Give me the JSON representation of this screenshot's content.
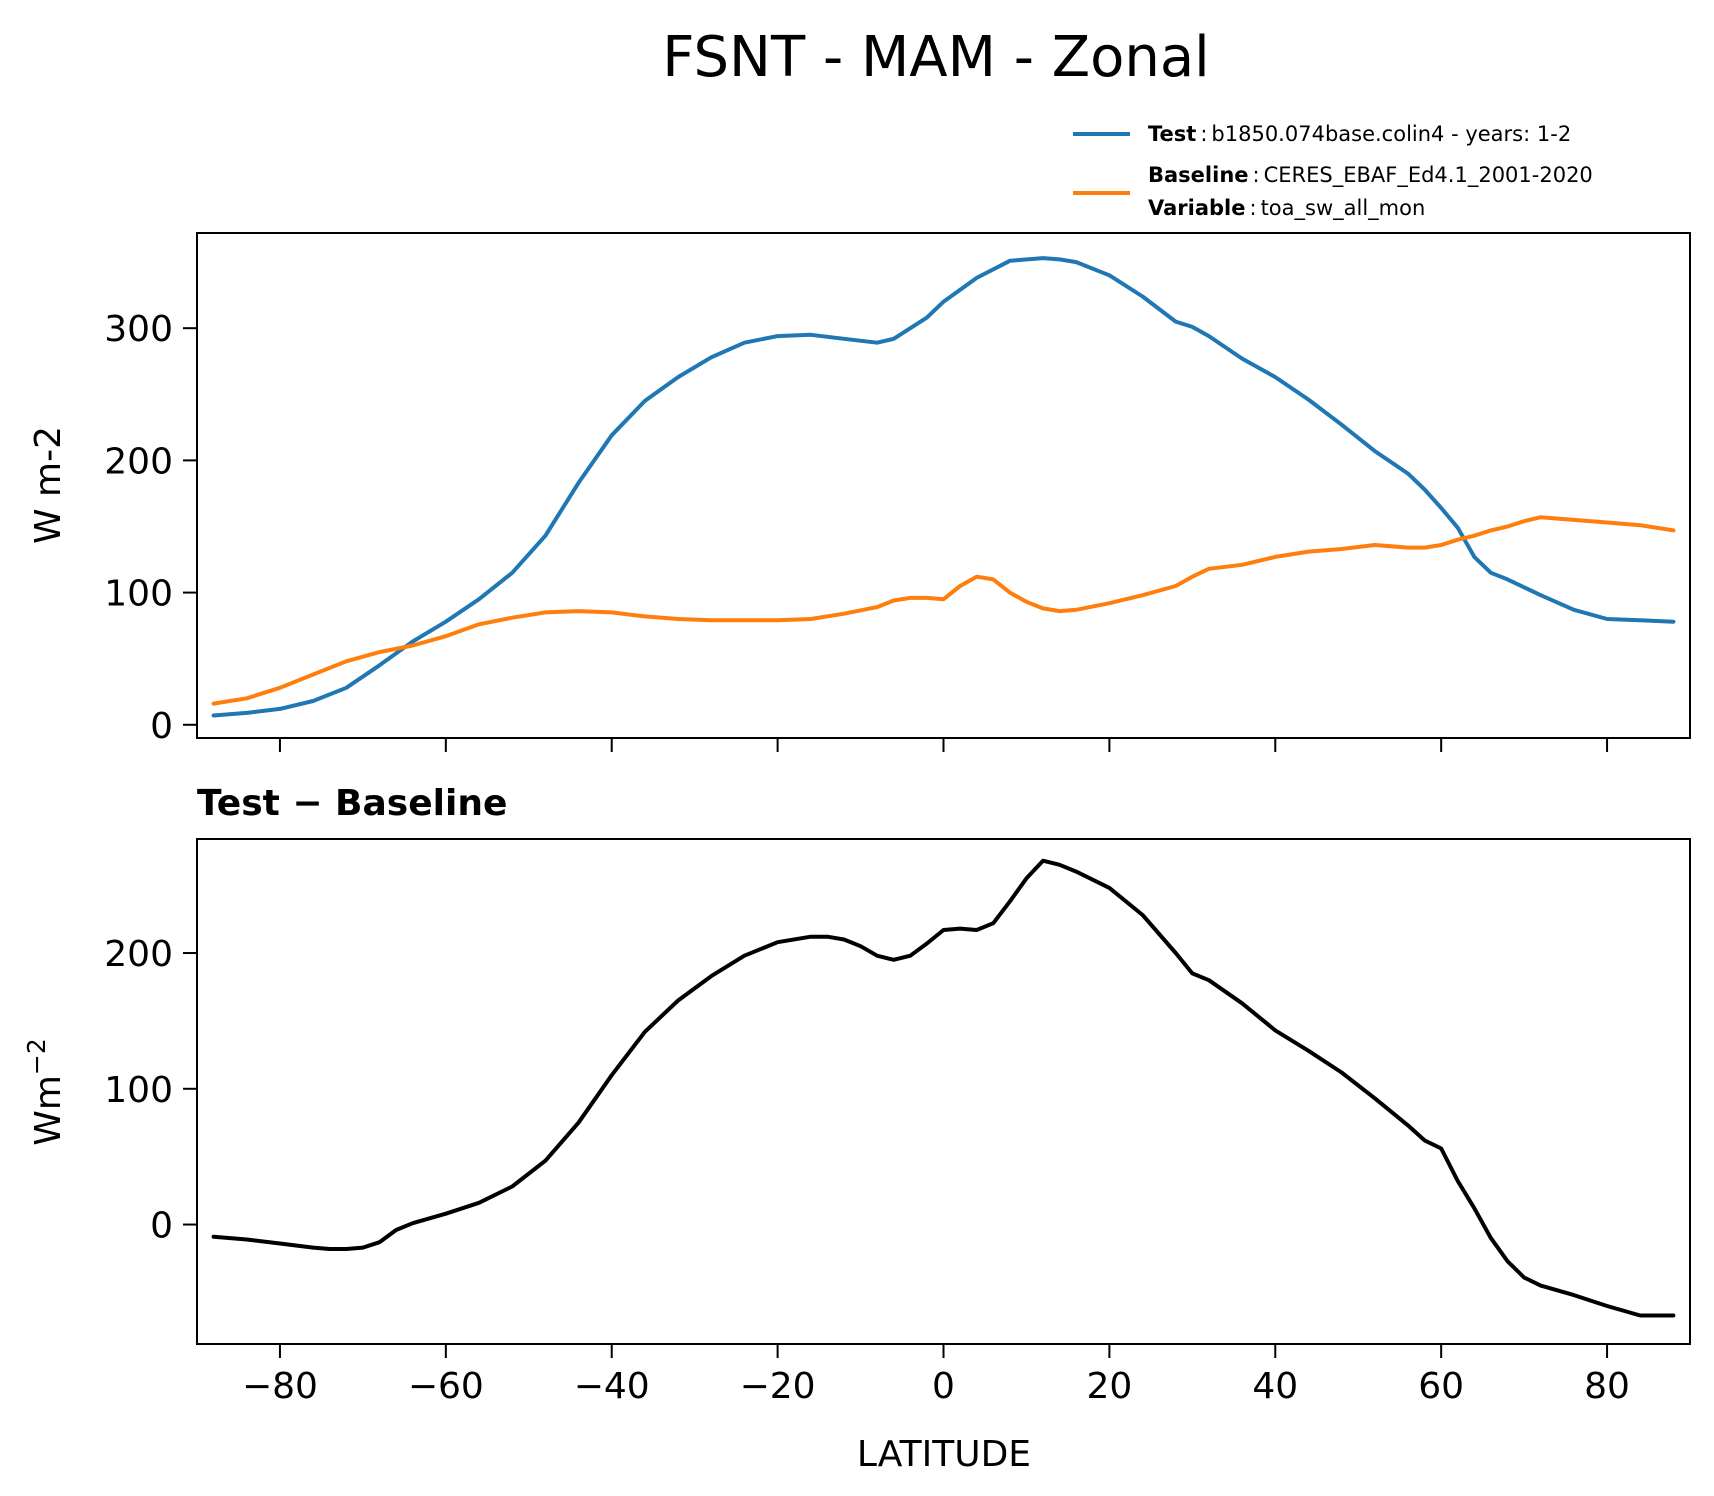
{
  "figure": {
    "title": "FSNT - MAM - Zonal",
    "colors": {
      "test": "#1f77b4",
      "baseline": "#ff7f0e",
      "diff": "#000000"
    }
  },
  "legend": {
    "test_key": "Test",
    "test_value": "b1850.074base.colin4 - years: 1-2",
    "baseline_key": "Baseline",
    "baseline_value": "CERES_EBAF_Ed4.1_2001-2020",
    "variable_key": "Variable",
    "variable_value": "toa_sw_all_mon",
    "separator": ":"
  },
  "chart_data": [
    {
      "type": "line",
      "ylabel": "W m-2",
      "xlim": [
        -90,
        90
      ],
      "ylim": [
        -10,
        372
      ],
      "xticks": [
        -80,
        -60,
        -40,
        -20,
        0,
        20,
        40,
        60,
        80
      ],
      "yticks": [
        0,
        100,
        200,
        300
      ],
      "ytick_labels": [
        "0",
        "100",
        "200",
        "300"
      ],
      "show_xtick_labels": false,
      "grid": false,
      "legend_location": "above right",
      "series": [
        {
          "name": "Test",
          "color": "#1f77b4",
          "x": [
            -88,
            -84,
            -80,
            -76,
            -72,
            -68,
            -64,
            -60,
            -56,
            -52,
            -48,
            -44,
            -40,
            -36,
            -32,
            -28,
            -24,
            -20,
            -16,
            -12,
            -8,
            -6,
            -4,
            -2,
            0,
            4,
            8,
            12,
            14,
            16,
            20,
            24,
            28,
            30,
            32,
            36,
            40,
            44,
            48,
            52,
            56,
            58,
            60,
            62,
            64,
            66,
            68,
            70,
            72,
            76,
            80,
            84,
            88
          ],
          "y": [
            7,
            9,
            12,
            18,
            28,
            45,
            63,
            78,
            95,
            115,
            143,
            183,
            219,
            245,
            263,
            278,
            289,
            294,
            295,
            292,
            289,
            292,
            300,
            308,
            320,
            338,
            351,
            353,
            352,
            350,
            340,
            324,
            305,
            301,
            294,
            277,
            263,
            246,
            227,
            207,
            190,
            178,
            164,
            149,
            127,
            115,
            110,
            104,
            98,
            87,
            80,
            79,
            78
          ]
        },
        {
          "name": "Baseline",
          "color": "#ff7f0e",
          "x": [
            -88,
            -84,
            -80,
            -76,
            -72,
            -68,
            -64,
            -60,
            -56,
            -52,
            -48,
            -44,
            -40,
            -36,
            -32,
            -28,
            -24,
            -20,
            -16,
            -12,
            -8,
            -6,
            -4,
            -2,
            0,
            2,
            4,
            6,
            8,
            10,
            12,
            14,
            16,
            20,
            24,
            28,
            30,
            32,
            36,
            40,
            44,
            48,
            52,
            56,
            58,
            60,
            62,
            64,
            66,
            68,
            70,
            72,
            76,
            80,
            84,
            88
          ],
          "y": [
            16,
            20,
            28,
            38,
            48,
            55,
            60,
            67,
            76,
            81,
            85,
            86,
            85,
            82,
            80,
            79,
            79,
            79,
            80,
            84,
            89,
            94,
            96,
            96,
            95,
            105,
            112,
            110,
            100,
            93,
            88,
            86,
            87,
            92,
            98,
            105,
            112,
            118,
            121,
            127,
            131,
            133,
            136,
            134,
            134,
            136,
            140,
            143,
            147,
            150,
            154,
            157,
            155,
            153,
            151,
            147
          ]
        }
      ]
    },
    {
      "type": "line",
      "title": "Test − Baseline",
      "xlabel": "LATITUDE",
      "ylabel_base": "Wm",
      "ylabel_sup": "−2",
      "xlim": [
        -90,
        90
      ],
      "ylim": [
        -88,
        284
      ],
      "xticks": [
        -80,
        -60,
        -40,
        -20,
        0,
        20,
        40,
        60,
        80
      ],
      "xtick_labels": [
        "−80",
        "−60",
        "−40",
        "−20",
        "0",
        "20",
        "40",
        "60",
        "80"
      ],
      "yticks": [
        0,
        100,
        200
      ],
      "ytick_labels": [
        "0",
        "100",
        "200"
      ],
      "grid": false,
      "series": [
        {
          "color": "#000000",
          "x": [
            -88,
            -84,
            -80,
            -76,
            -74,
            -72,
            -70,
            -68,
            -66,
            -64,
            -60,
            -56,
            -52,
            -48,
            -44,
            -40,
            -36,
            -32,
            -28,
            -24,
            -20,
            -16,
            -14,
            -12,
            -10,
            -8,
            -6,
            -4,
            -2,
            0,
            2,
            4,
            6,
            8,
            10,
            12,
            14,
            16,
            20,
            24,
            28,
            30,
            32,
            36,
            40,
            44,
            48,
            52,
            56,
            58,
            60,
            62,
            64,
            66,
            68,
            70,
            72,
            76,
            80,
            84,
            88
          ],
          "y": [
            -9,
            -11,
            -14,
            -17,
            -18,
            -18,
            -17,
            -13,
            -4,
            1,
            8,
            16,
            28,
            47,
            75,
            110,
            142,
            165,
            183,
            198,
            208,
            212,
            212,
            210,
            205,
            198,
            195,
            198,
            207,
            217,
            218,
            217,
            222,
            238,
            255,
            268,
            265,
            260,
            248,
            228,
            200,
            185,
            180,
            163,
            143,
            128,
            112,
            93,
            73,
            62,
            56,
            32,
            12,
            -10,
            -27,
            -39,
            -45,
            -52,
            -60,
            -67,
            -67
          ]
        }
      ]
    }
  ]
}
